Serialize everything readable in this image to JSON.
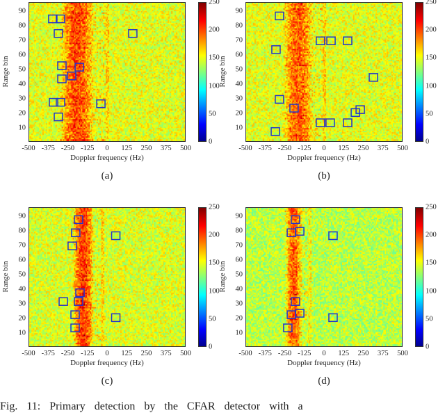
{
  "caption": "Fig. 11: Primary detection by the CFAR detector with a",
  "chart_data": [
    {
      "type": "heatmap",
      "label": "(a)",
      "xlabel": "Doppler frequency (Hz)",
      "ylabel": "Range bin",
      "xlim": [
        -500,
        500
      ],
      "ylim": [
        0.5,
        96
      ],
      "xticks": [
        "-500",
        "-375",
        "-250",
        "-125",
        "0",
        "125",
        "250",
        "375",
        "500"
      ],
      "yticks": [
        "10",
        "20",
        "30",
        "40",
        "50",
        "60",
        "70",
        "80",
        "90"
      ],
      "colorbar": {
        "range": [
          0,
          250
        ],
        "ticks": [
          "0",
          "50",
          "100",
          "150",
          "200",
          "250"
        ],
        "colormap": "jet"
      },
      "background_level": 150,
      "clutter_band_hz": [
        -300,
        -10
      ],
      "clutter_level": 200,
      "detections": [
        [
          -350,
          85
        ],
        [
          -301,
          85
        ],
        [
          -314,
          75
        ],
        [
          159,
          75
        ],
        [
          -292,
          53
        ],
        [
          -181,
          52
        ],
        [
          -292,
          44
        ],
        [
          -230,
          46
        ],
        [
          -345,
          28
        ],
        [
          -301,
          28
        ],
        [
          -44,
          27
        ],
        [
          -314,
          18
        ]
      ],
      "detection_box_color": "#2233cc"
    },
    {
      "type": "heatmap",
      "label": "(b)",
      "xlabel": "Doppler frequency (Hz)",
      "ylabel": "Range bin",
      "xlim": [
        -500,
        500
      ],
      "ylim": [
        0.5,
        96
      ],
      "xticks": [
        "-500",
        "-375",
        "-250",
        "-125",
        "0",
        "125",
        "250",
        "375",
        "500"
      ],
      "yticks": [
        "10",
        "20",
        "30",
        "40",
        "50",
        "60",
        "70",
        "80",
        "90"
      ],
      "colorbar": {
        "range": [
          0,
          250
        ],
        "ticks": [
          "0",
          "50",
          "100",
          "150",
          "200",
          "250"
        ],
        "colormap": "jet"
      },
      "background_level": 150,
      "clutter_band_hz": [
        -260,
        -10
      ],
      "clutter_level": 195,
      "detections": [
        [
          -288,
          87
        ],
        [
          -310,
          64
        ],
        [
          -27,
          70
        ],
        [
          40,
          70
        ],
        [
          146,
          70
        ],
        [
          310,
          45
        ],
        [
          -288,
          30
        ],
        [
          -195,
          24
        ],
        [
          -27,
          14
        ],
        [
          35,
          14
        ],
        [
          146,
          14
        ],
        [
          195,
          21
        ],
        [
          226,
          23
        ],
        [
          -314,
          8
        ]
      ],
      "detection_box_color": "#2233cc"
    },
    {
      "type": "heatmap",
      "label": "(c)",
      "xlabel": "Doppler frequency (Hz)",
      "ylabel": "Range bin",
      "xlim": [
        -500,
        500
      ],
      "ylim": [
        0.5,
        96
      ],
      "xticks": [
        "-500",
        "-375",
        "-250",
        "-125",
        "0",
        "125",
        "250",
        "375",
        "500"
      ],
      "yticks": [
        "10",
        "20",
        "30",
        "40",
        "50",
        "60",
        "70",
        "80",
        "90"
      ],
      "colorbar": {
        "range": [
          0,
          250
        ],
        "ticks": [
          "0",
          "50",
          "100",
          "150",
          "200",
          "250"
        ],
        "colormap": "jet"
      },
      "background_level": 148,
      "clutter_band_hz": [
        -220,
        -40
      ],
      "clutter_level": 205,
      "detections": [
        [
          -186,
          88
        ],
        [
          -204,
          79
        ],
        [
          51,
          77
        ],
        [
          -226,
          70
        ],
        [
          -177,
          38
        ],
        [
          -283,
          32
        ],
        [
          -186,
          32
        ],
        [
          -208,
          23
        ],
        [
          51,
          21
        ],
        [
          -208,
          14
        ]
      ],
      "detection_box_color": "#2233cc"
    },
    {
      "type": "heatmap",
      "label": "(d)",
      "xlabel": "Doppler frequency (Hz)",
      "ylabel": "Range bin",
      "xlim": [
        -500,
        500
      ],
      "ylim": [
        0.5,
        96
      ],
      "xticks": [
        "-500",
        "-375",
        "-250",
        "-125",
        "0",
        "125",
        "250",
        "375",
        "500"
      ],
      "yticks": [
        "10",
        "20",
        "30",
        "40",
        "50",
        "60",
        "70",
        "80",
        "90"
      ],
      "colorbar": {
        "range": [
          0,
          250
        ],
        "ticks": [
          "0",
          "50",
          "100",
          "150",
          "200",
          "250"
        ],
        "colormap": "jet"
      },
      "background_level": 140,
      "clutter_band_hz": [
        -250,
        -100
      ],
      "clutter_level": 195,
      "detections": [
        [
          -186,
          88
        ],
        [
          -212,
          79
        ],
        [
          -159,
          80
        ],
        [
          53,
          77
        ],
        [
          -186,
          32
        ],
        [
          -212,
          23
        ],
        [
          -159,
          24
        ],
        [
          -235,
          14
        ],
        [
          53,
          21
        ]
      ],
      "detection_box_color": "#2233cc"
    }
  ]
}
